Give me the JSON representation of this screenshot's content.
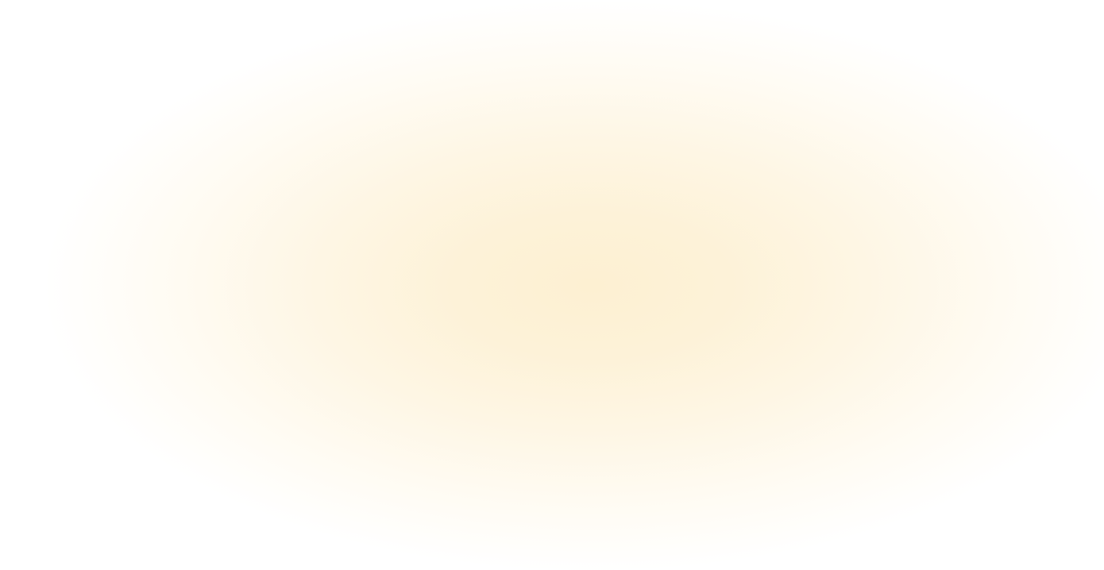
{
  "background": {
    "base_color": "#ffffff",
    "glow_color": "#fdf0d2"
  }
}
